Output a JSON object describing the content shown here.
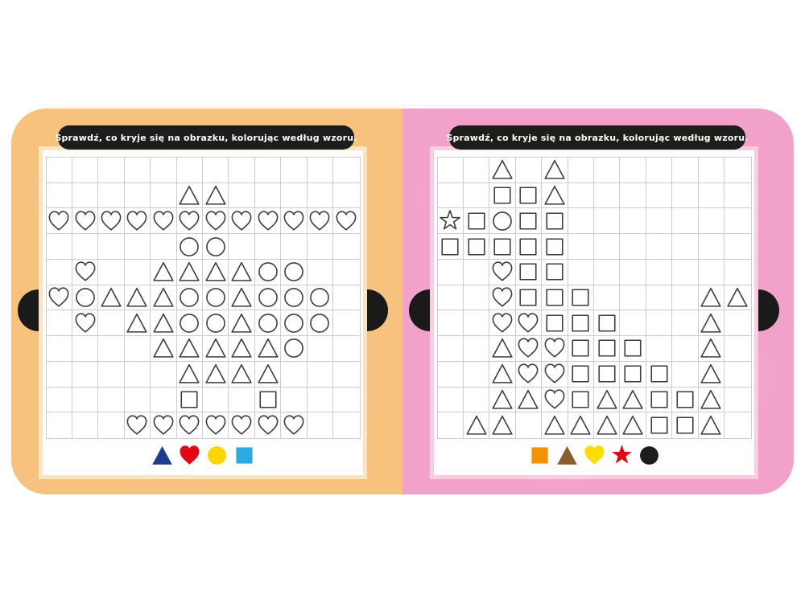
{
  "book": {
    "instruction": "Sprawdź, co kryje się na obrazku, kolorując według wzoru.",
    "banner_bg": "#1d1d1b",
    "banner_text_color": "#ffffff",
    "grid_line_color": "#cccccc",
    "shape_outline_color": "#3d3d3d",
    "shape_fill_color": "#ffffff",
    "notch_color": "#1a1a1a",
    "shape_codes": {
      "T": "triangle",
      "H": "heart",
      "C": "circle",
      "S": "square",
      "R": "star"
    },
    "pages": [
      {
        "side": "left",
        "bg_color": "#f7c17e",
        "frame_color": "#f9e5c2",
        "grid_rows": [
          "............",
          ".....TT.....",
          "HHHHHHHHHHHH",
          ".....CC.....",
          ".H..TTTTCC..",
          "HCTTTCCTCCC.",
          ".H.TTCCTCCC.",
          "....TTTTTC..",
          ".....TTTT...",
          ".....S..S...",
          "...HHHHHHH.."
        ],
        "legend": [
          {
            "shape": "triangle",
            "color": "#1d3c8f"
          },
          {
            "shape": "heart",
            "color": "#e30613"
          },
          {
            "shape": "circle",
            "color": "#fbd500"
          },
          {
            "shape": "square",
            "color": "#2fa8e1"
          }
        ]
      },
      {
        "side": "right",
        "bg_color": "#f2a1ca",
        "frame_color": "#f9cce1",
        "grid_rows": [
          "..T.T.......",
          "..SST.......",
          "RSCSS.......",
          "SSSSS.......",
          "..HSS.......",
          "..HSSS....TT",
          "..HHSSS...T.",
          "..THHSSS..T.",
          "..THHSSSS.T.",
          "..TTHSTTSST.",
          ".TT.TTTTSST."
        ],
        "legend": [
          {
            "shape": "square",
            "color": "#f39200"
          },
          {
            "shape": "triangle",
            "color": "#8c5e2e"
          },
          {
            "shape": "heart",
            "color": "#ffdc00"
          },
          {
            "shape": "star",
            "color": "#e30613"
          },
          {
            "shape": "circle",
            "color": "#1d1d1b"
          }
        ]
      }
    ]
  }
}
